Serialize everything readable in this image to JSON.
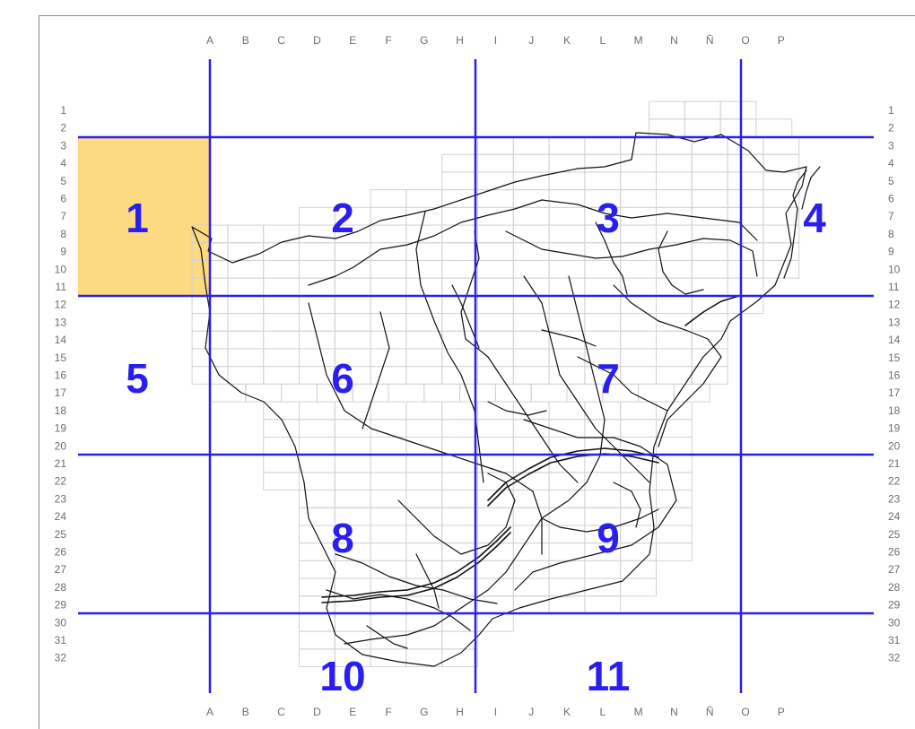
{
  "map": {
    "columns": [
      "A",
      "B",
      "C",
      "D",
      "E",
      "F",
      "G",
      "H",
      "I",
      "J",
      "K",
      "L",
      "M",
      "N",
      "Ñ",
      "O",
      "P"
    ],
    "rows": [
      "1",
      "2",
      "3",
      "4",
      "5",
      "6",
      "7",
      "8",
      "9",
      "10",
      "11",
      "12",
      "13",
      "14",
      "15",
      "16",
      "17",
      "18",
      "19",
      "20",
      "21",
      "22",
      "23",
      "24",
      "25",
      "26",
      "27",
      "28",
      "29",
      "30",
      "31",
      "32"
    ],
    "zones": [
      "1",
      "2",
      "3",
      "4",
      "5",
      "6",
      "7",
      "8",
      "9",
      "10",
      "11"
    ],
    "highlighted_zone": "1",
    "colors": {
      "highlight": "#fdd980",
      "zone_lines": "#2a1ef0",
      "zone_text": "#2a1ef0",
      "grid": "#d3d3d3",
      "roads": "#111111",
      "labels": "#6d6d6d"
    }
  }
}
